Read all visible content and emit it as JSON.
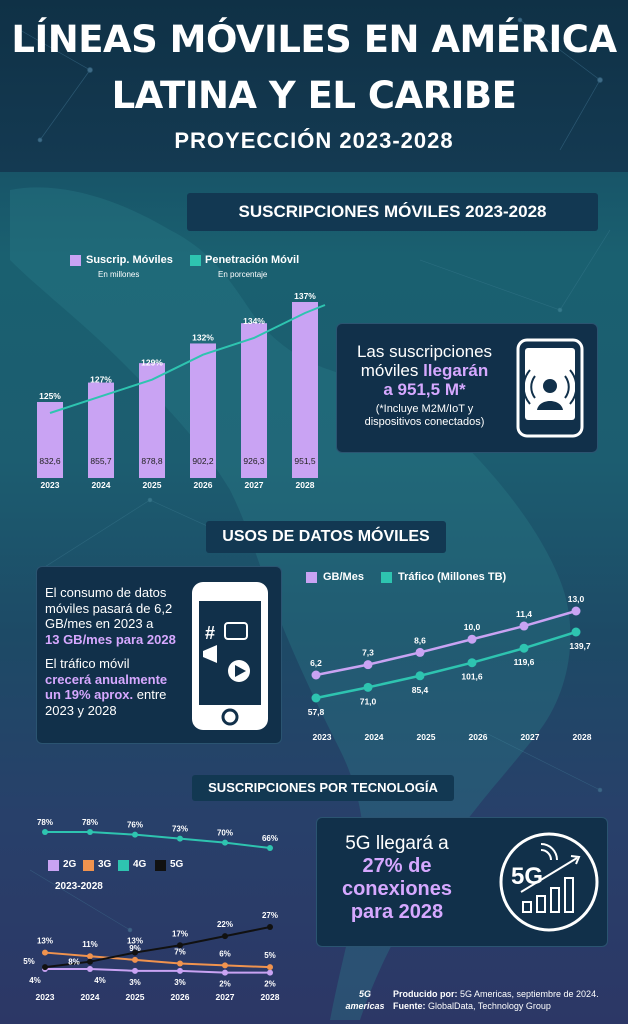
{
  "header": {
    "title_line1": "LÍNEAS MÓVILES EN AMÉRICA",
    "title_line2": "LATINA Y EL CARIBE",
    "subtitle": "PROYECCIÓN 2023-2028"
  },
  "section1": {
    "banner": "SUSCRIPCIONES MÓVILES 2023-2028",
    "legend": [
      {
        "label": "Suscrip. Móviles",
        "sub": "En millones",
        "color": "#c9a3f3"
      },
      {
        "label": "Penetración Móvil",
        "sub": "En porcentaje",
        "color": "#2ec4b0"
      }
    ],
    "callout": {
      "line1": "Las suscripciones",
      "line2a": "móviles ",
      "line2b": "llegarán",
      "line3": "a 951,5 M*",
      "note1": "(*Incluye M2M/IoT y",
      "note2": "dispositivos conectados)"
    }
  },
  "section2": {
    "banner": "USOS DE DATOS MÓVILES",
    "callout": {
      "p1a": "El consumo de datos",
      "p1b": "móviles pasará de 6,2",
      "p1c": "GB/mes en 2023 a",
      "p1d": "13 GB/mes para 2028",
      "p2a": "El tráfico móvil",
      "p2b": "crecerá anualmente",
      "p2c": "un 19% aprox.",
      "p2d": " entre",
      "p2e": "2023 y 2028"
    },
    "legend": [
      {
        "label": "GB/Mes",
        "color": "#c9a3f3"
      },
      {
        "label": "Tráfico (Millones TB)",
        "color": "#2ec4b0"
      }
    ]
  },
  "section3": {
    "banner": "SUSCRIPCIONES POR TECNOLOGÍA",
    "legend": [
      {
        "label": "2G",
        "color": "#c9a3f3"
      },
      {
        "label": "3G",
        "color": "#f0934e"
      },
      {
        "label": "4G",
        "color": "#2ec4b0"
      },
      {
        "label": "5G",
        "color": "#111111"
      }
    ],
    "legend_years": "2023-2028",
    "callout": {
      "line1": "5G llegará a",
      "line2": "27% de",
      "line3": "conexiones",
      "line4": "para 2028"
    },
    "icon_label": "5G"
  },
  "footer": {
    "prod_label": "Producido por:",
    "prod_text": " 5G Americas, septiembre de 2024.",
    "src_label": "Fuente:",
    "src_text": " GlobalData, Technology Group",
    "logo_text": "5G americas"
  },
  "chart_data": [
    {
      "type": "bar",
      "title": "SUSCRIPCIONES MÓVILES 2023-2028",
      "categories": [
        "2023",
        "2024",
        "2025",
        "2026",
        "2027",
        "2028"
      ],
      "series": [
        {
          "name": "Suscrip. Móviles",
          "values": [
            832.6,
            855.7,
            878.8,
            902.2,
            926.3,
            951.5
          ],
          "labels": [
            "832,6",
            "855,7",
            "878,8",
            "902,2",
            "926,3",
            "951,5"
          ],
          "color": "#c9a3f3"
        },
        {
          "name": "Penetración Móvil",
          "type": "line",
          "values": [
            125,
            127,
            129,
            132,
            134,
            137
          ],
          "labels": [
            "125%",
            "127%",
            "129%",
            "132%",
            "134%",
            "137%"
          ],
          "color": "#2ec4b0"
        }
      ]
    },
    {
      "type": "line",
      "title": "USOS DE DATOS MÓVILES",
      "categories": [
        "2023",
        "2024",
        "2025",
        "2026",
        "2027",
        "2028"
      ],
      "series": [
        {
          "name": "GB/Mes",
          "values": [
            6.2,
            7.3,
            8.6,
            10.0,
            11.4,
            13.0
          ],
          "labels": [
            "6,2",
            "7,3",
            "8,6",
            "10,0",
            "11,4",
            "13,0"
          ],
          "color": "#c9a3f3"
        },
        {
          "name": "Tráfico (Millones TB)",
          "values": [
            57.8,
            71.0,
            85.4,
            101.6,
            119.6,
            139.7
          ],
          "labels": [
            "57,8",
            "71,0",
            "85,4",
            "101,6",
            "119,6",
            "139,7"
          ],
          "color": "#2ec4b0"
        }
      ]
    },
    {
      "type": "line",
      "title": "SUSCRIPCIONES POR TECNOLOGÍA",
      "categories": [
        "2023",
        "2024",
        "2025",
        "2026",
        "2027",
        "2028"
      ],
      "series": [
        {
          "name": "4G",
          "values": [
            78,
            78,
            76,
            73,
            70,
            66
          ],
          "color": "#2ec4b0"
        },
        {
          "name": "2G",
          "values": [
            4,
            4,
            3,
            3,
            2,
            2
          ],
          "color": "#c9a3f3"
        },
        {
          "name": "3G",
          "values": [
            13,
            11,
            9,
            7,
            6,
            5
          ],
          "color": "#f0934e"
        },
        {
          "name": "5G",
          "values": [
            5,
            8,
            13,
            17,
            22,
            27
          ],
          "color": "#111111"
        }
      ]
    }
  ]
}
